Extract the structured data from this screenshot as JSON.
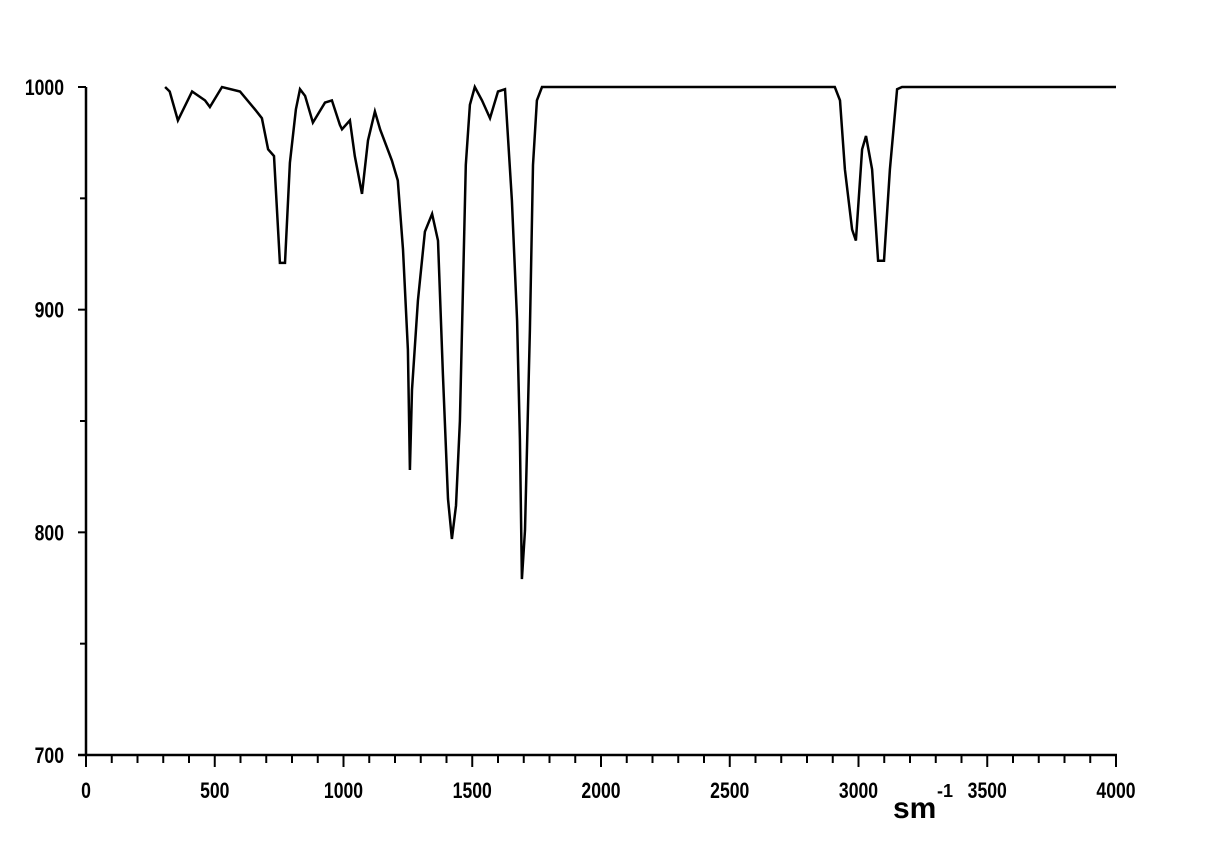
{
  "chart_data": {
    "type": "line",
    "title": "",
    "xlabel": "sm",
    "xlabel_superscript": "-1",
    "ylabel": "",
    "xlim": [
      0,
      4000
    ],
    "ylim": [
      700,
      1000
    ],
    "x_ticks": [
      "0",
      "500",
      "1000",
      "1500",
      "2000",
      "2500",
      "3000",
      "3500",
      "4000"
    ],
    "y_ticks": [
      "700",
      "800",
      "900",
      "1000"
    ],
    "grid": false,
    "line_color": "#000000",
    "series": [
      {
        "x": [
          307,
          325,
          357,
          412,
          462,
          481,
          528,
          598,
          656,
          683,
          707,
          730,
          753,
          773,
          792,
          815,
          831,
          851,
          881,
          928,
          955,
          986,
          994,
          1025,
          1044,
          1072,
          1095,
          1122,
          1142,
          1188,
          1211,
          1231,
          1250,
          1258,
          1266,
          1289,
          1316,
          1344,
          1367,
          1386,
          1406,
          1421,
          1437,
          1452,
          1475,
          1491,
          1510,
          1538,
          1569,
          1600,
          1627,
          1654,
          1674,
          1685,
          1693,
          1705,
          1724,
          1736,
          1751,
          1771,
          2908,
          2928,
          2947,
          2975,
          2990,
          3014,
          3029,
          3053,
          3076,
          3099,
          3122,
          3150,
          3169,
          4000
        ],
        "y": [
          1000,
          998,
          985,
          998,
          994,
          991,
          1000,
          998,
          990,
          986,
          972,
          969,
          921,
          921,
          966,
          990,
          999,
          996,
          984,
          993,
          994,
          983,
          981,
          985,
          969,
          952,
          976,
          989,
          981,
          967,
          958,
          927,
          882,
          828,
          864,
          904,
          935,
          943,
          931,
          871,
          815,
          797,
          812,
          850,
          965,
          992,
          1000,
          994,
          986,
          998,
          999,
          949,
          895,
          842,
          779,
          801,
          891,
          965,
          994,
          1000,
          1000,
          994,
          963,
          936,
          931,
          972,
          978,
          963,
          922,
          922,
          963,
          999,
          1000,
          1000
        ]
      }
    ]
  }
}
